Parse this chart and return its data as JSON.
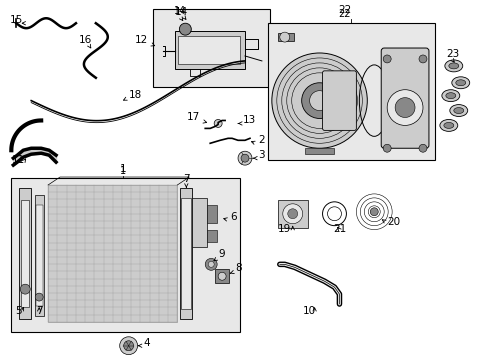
{
  "bg_color": "#ffffff",
  "fig_width": 4.89,
  "fig_height": 3.6,
  "dpi": 100,
  "lc": "#000000",
  "tc": "#000000",
  "light_gray": "#e8e8e8",
  "med_gray": "#cccccc",
  "dark_gray": "#888888",
  "grid_color": "#999999",
  "part_gray": "#aaaaaa"
}
